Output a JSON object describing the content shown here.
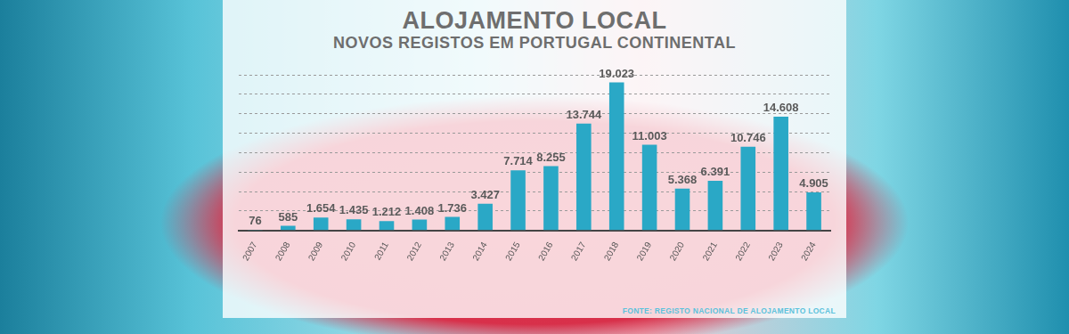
{
  "chart_data": {
    "type": "bar",
    "title": "ALOJAMENTO LOCAL",
    "subtitle": "NOVOS REGISTOS EM PORTUGAL CONTINENTAL",
    "source": "FONTE: REGISTO NACIONAL DE ALOJAMENTO LOCAL",
    "categories": [
      "2007",
      "2008",
      "2009",
      "2010",
      "2011",
      "2012",
      "2013",
      "2014",
      "2015",
      "2016",
      "2017",
      "2018",
      "2019",
      "2020",
      "2021",
      "2022",
      "2023",
      "2024"
    ],
    "values": [
      76,
      585,
      1654,
      1435,
      1212,
      1408,
      1736,
      3427,
      7714,
      8255,
      13744,
      19023,
      11003,
      5368,
      6391,
      10746,
      14608,
      4905
    ],
    "value_labels": [
      "76",
      "585",
      "1.654",
      "1.435",
      "1.212",
      "1.408",
      "1.736",
      "3.427",
      "7.714",
      "8.255",
      "13.744",
      "19.023",
      "11.003",
      "5.368",
      "6.391",
      "10.746",
      "14.608",
      "4.905"
    ],
    "color": "#2aa8c6",
    "ylim": [
      0,
      20000
    ],
    "yticks": [
      0,
      2500,
      5000,
      7500,
      10000,
      12500,
      15000,
      17500,
      20000
    ],
    "grid": true,
    "data_labels": true,
    "tick_labels": "x"
  }
}
